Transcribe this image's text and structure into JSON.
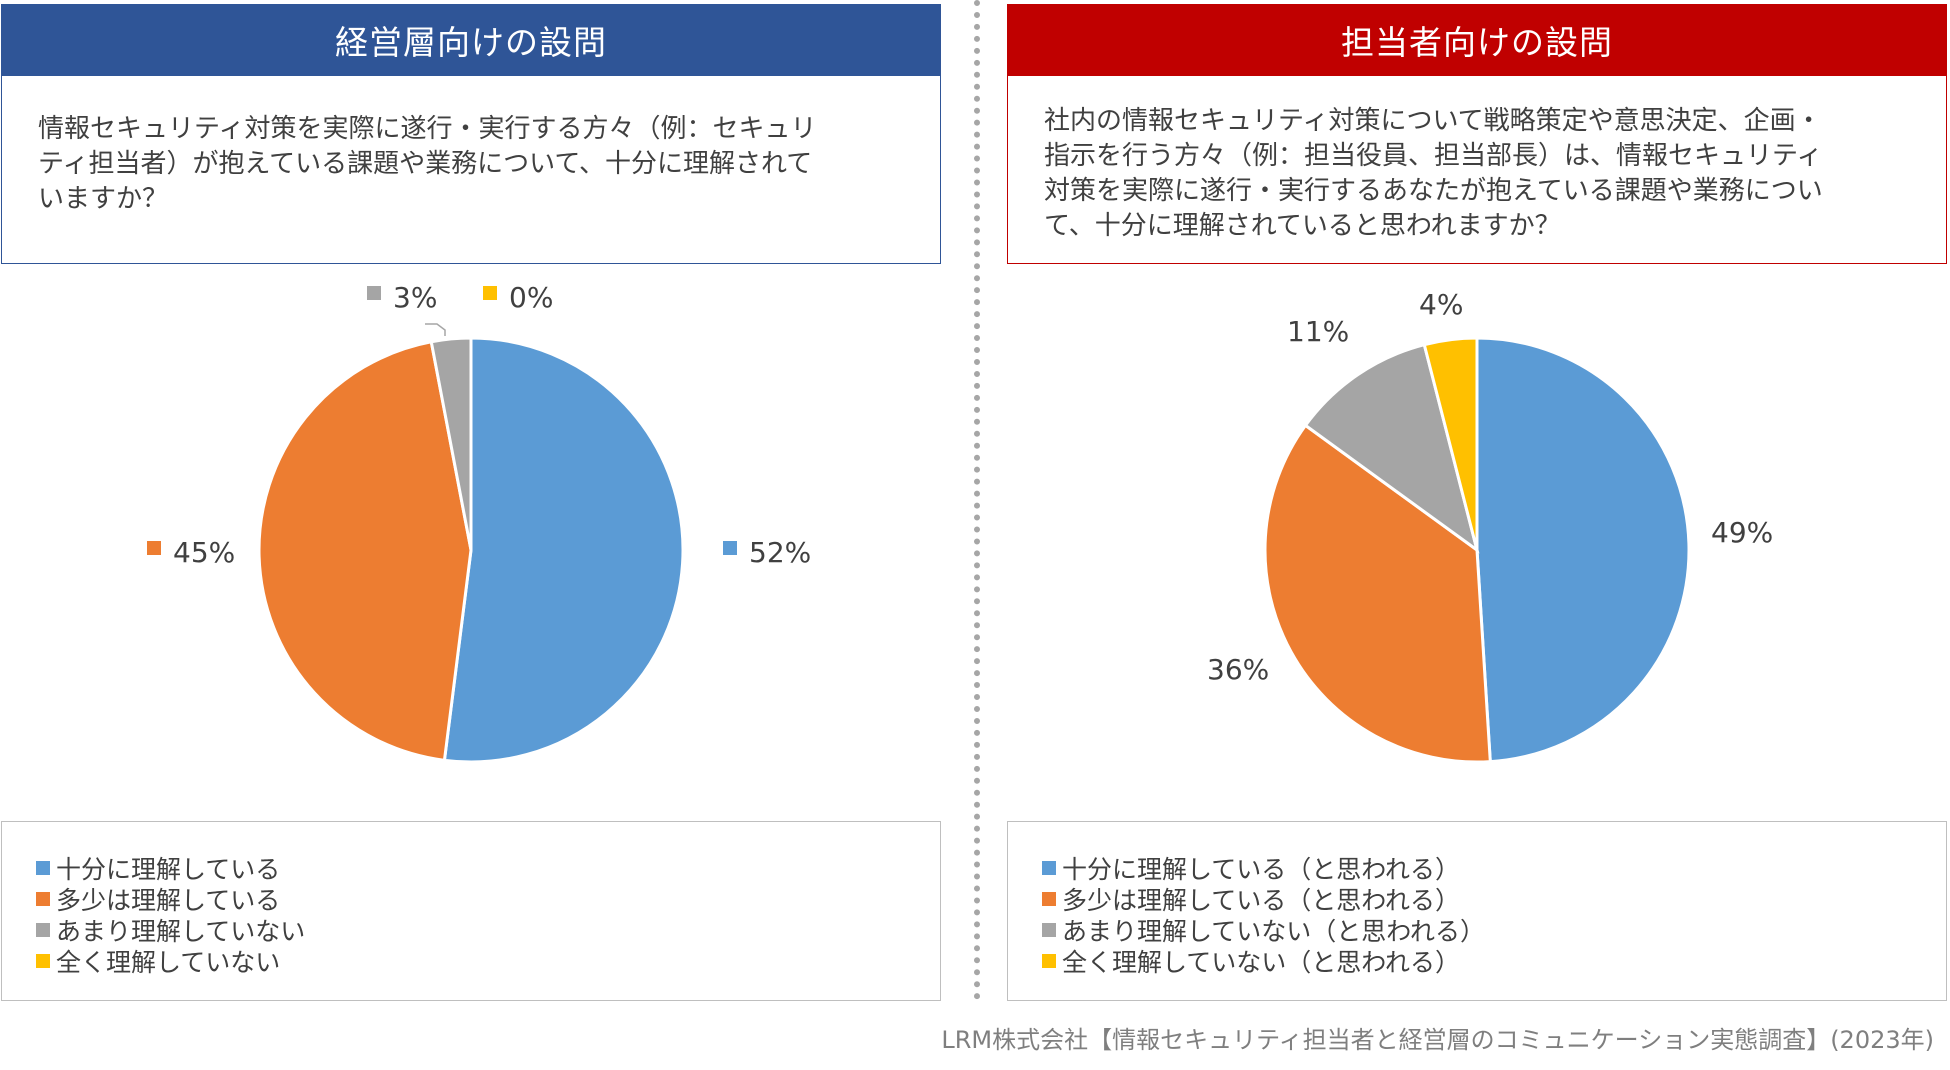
{
  "colors": {
    "left_header_bg": "#2f5597",
    "right_header_bg": "#c00000",
    "series": [
      "#5b9bd5",
      "#ed7d31",
      "#a5a5a5",
      "#ffc000"
    ]
  },
  "panels": {
    "left": {
      "header": "経営層向けの設問",
      "question_lines": [
        "情報セキュリティ対策を実際に遂行・実行する方々（例：セキュリ",
        "ティ担当者）が抱えている課題や業務について、十分に理解されて",
        "いますか？"
      ]
    },
    "right": {
      "header": "担当者向けの設問",
      "question_lines": [
        "社内の情報セキュリティ対策について戦略策定や意思決定、企画・",
        "指示を行う方々（例：担当役員、担当部長）は、情報セキュリティ",
        "対策を実際に遂行・実行するあなたが抱えている課題や業務につい",
        "て、十分に理解されていると思われますか？"
      ]
    }
  },
  "chart_data": [
    {
      "type": "pie",
      "legend_position": "bottom",
      "categories": [
        "十分に理解している",
        "多少は理解している",
        "あまり理解していない",
        "全く理解していない"
      ],
      "values": [
        52,
        45,
        3,
        0
      ],
      "labels": [
        "52%",
        "45%",
        "3%",
        "0%"
      ],
      "labels_with_marker": true
    },
    {
      "type": "pie",
      "legend_position": "bottom",
      "categories": [
        "十分に理解している（と思われる）",
        "多少は理解している（と思われる）",
        "あまり理解していない（と思われる）",
        "全く理解していない（と思われる）"
      ],
      "values": [
        49,
        36,
        11,
        4
      ],
      "labels": [
        "49%",
        "36%",
        "11%",
        "4%"
      ],
      "labels_with_marker": false
    }
  ],
  "source": "LRM株式会社【情報セキュリティ担当者と経営層のコミュニケーション実態調査】(2023年)"
}
